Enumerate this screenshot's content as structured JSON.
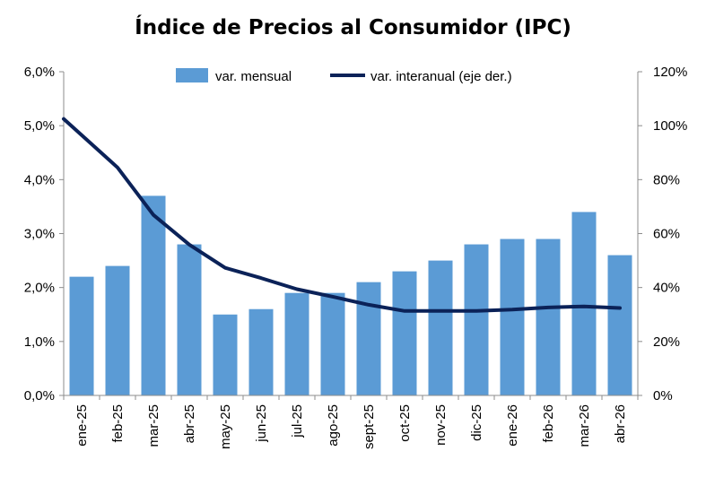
{
  "chart_data": {
    "type": "bar",
    "title": "Índice de Precios al Consumidor (IPC)",
    "categories": [
      "ene-25",
      "feb-25",
      "mar-25",
      "abr-25",
      "may-25",
      "jun-25",
      "jul-25",
      "ago-25",
      "sept-25",
      "oct-25",
      "nov-25",
      "dic-25",
      "ene-26",
      "feb-26",
      "mar-26",
      "abr-26"
    ],
    "series": [
      {
        "name": "var. mensual",
        "type": "bar",
        "axis": "left",
        "color": "#5b9bd5",
        "values": [
          2.2,
          2.4,
          3.7,
          2.8,
          1.5,
          1.6,
          1.9,
          1.9,
          2.1,
          2.3,
          2.5,
          2.8,
          2.9,
          2.9,
          3.4,
          2.6
        ]
      },
      {
        "name": "var. interanual (eje der.)",
        "type": "line",
        "axis": "right",
        "color": "#0b2258",
        "values": [
          102.5,
          84.5,
          66.9,
          55.9,
          47.3,
          43.5,
          39.4,
          36.6,
          33.6,
          31.3,
          31.3,
          31.3,
          31.8,
          32.6,
          33.0,
          32.4
        ]
      }
    ],
    "ylim_left": [
      0,
      6
    ],
    "yticks_left": [
      "0,0%",
      "1,0%",
      "2,0%",
      "3,0%",
      "4,0%",
      "5,0%",
      "6,0%"
    ],
    "ylim_right": [
      0,
      120
    ],
    "yticks_right": [
      "0%",
      "20%",
      "40%",
      "60%",
      "80%",
      "100%",
      "120%"
    ],
    "legend_position": "top-center",
    "grid": false
  }
}
